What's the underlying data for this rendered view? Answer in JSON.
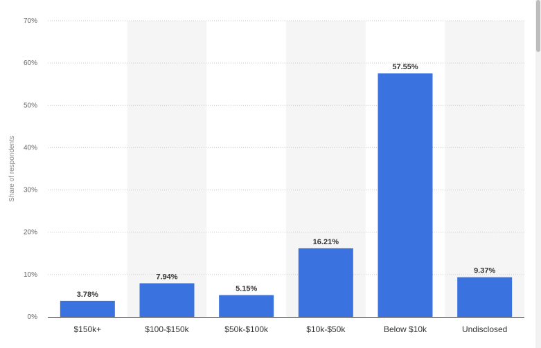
{
  "chart_data": {
    "type": "bar",
    "ylabel": "Share of respondents",
    "categories": [
      "$150k+",
      "$100-$150k",
      "$50k-$100k",
      "$10k-$50k",
      "Below $10k",
      "Undisclosed"
    ],
    "values": [
      3.78,
      7.94,
      5.15,
      16.21,
      57.55,
      9.37
    ],
    "data_labels": [
      "3.78%",
      "7.94%",
      "5.15%",
      "16.21%",
      "57.55%",
      "9.37%"
    ],
    "y_ticks": [
      0,
      10,
      20,
      30,
      40,
      50,
      60,
      70
    ],
    "y_tick_labels": [
      "0%",
      "10%",
      "20%",
      "30%",
      "40%",
      "50%",
      "60%",
      "70%"
    ],
    "ylim": [
      0,
      70
    ],
    "grid": true,
    "bar_color": "#3a72e0"
  }
}
